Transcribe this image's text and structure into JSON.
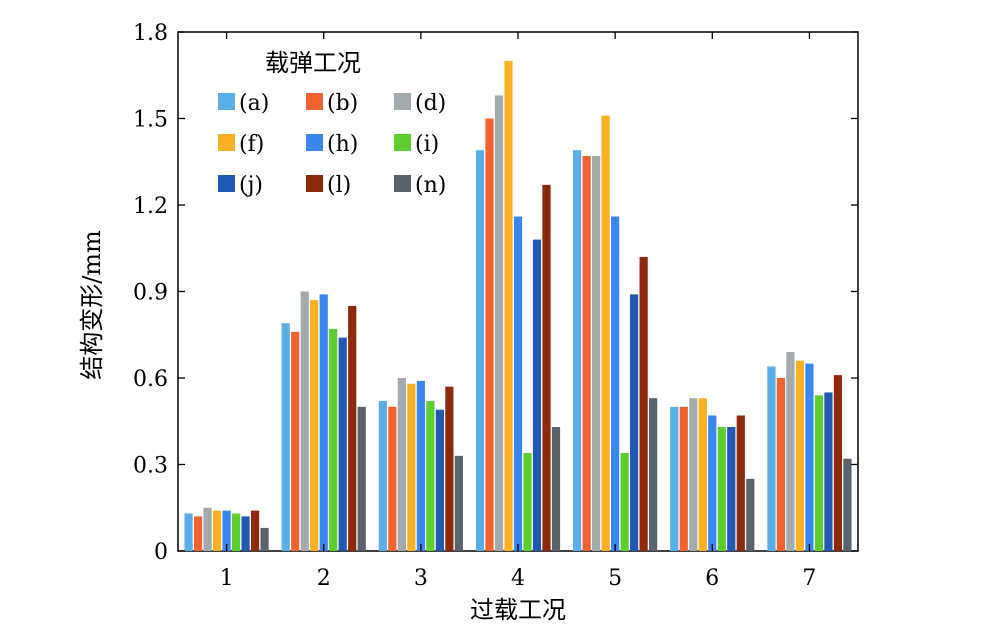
{
  "chart_data": {
    "type": "bar",
    "xlabel": "过载工况",
    "ylabel": "结构变形/mm",
    "ylim": [
      0,
      1.8
    ],
    "yticks": [
      "0",
      "0.3",
      "0.6",
      "0.9",
      "1.2",
      "1.5",
      "1.8"
    ],
    "categories": [
      "1",
      "2",
      "3",
      "4",
      "5",
      "6",
      "7"
    ],
    "legend_title": "载弹工况",
    "legend_position": "top-left",
    "grid": false,
    "series": [
      {
        "name": "(a)",
        "color": "#5AAEE8",
        "values": [
          0.13,
          0.79,
          0.52,
          1.39,
          1.39,
          0.5,
          0.64
        ]
      },
      {
        "name": "(b)",
        "color": "#F0622E",
        "values": [
          0.12,
          0.76,
          0.5,
          1.5,
          1.37,
          0.5,
          0.6
        ]
      },
      {
        "name": "(d)",
        "color": "#A2AAAE",
        "values": [
          0.15,
          0.9,
          0.6,
          1.58,
          1.37,
          0.53,
          0.69
        ]
      },
      {
        "name": "(f)",
        "color": "#FBB024",
        "values": [
          0.14,
          0.87,
          0.58,
          1.7,
          1.51,
          0.53,
          0.66
        ]
      },
      {
        "name": "(h)",
        "color": "#3A86F0",
        "values": [
          0.14,
          0.89,
          0.59,
          1.16,
          1.16,
          0.47,
          0.65
        ]
      },
      {
        "name": "(i)",
        "color": "#5CCF2E",
        "values": [
          0.13,
          0.77,
          0.52,
          0.34,
          0.34,
          0.43,
          0.54
        ]
      },
      {
        "name": "(j)",
        "color": "#2158B4",
        "values": [
          0.12,
          0.74,
          0.49,
          1.08,
          0.89,
          0.43,
          0.55
        ]
      },
      {
        "name": "(l)",
        "color": "#8E2A0C",
        "values": [
          0.14,
          0.85,
          0.57,
          1.27,
          1.02,
          0.47,
          0.61
        ]
      },
      {
        "name": "(n)",
        "color": "#59636B",
        "values": [
          0.08,
          0.5,
          0.33,
          0.43,
          0.53,
          0.25,
          0.32
        ]
      }
    ]
  }
}
